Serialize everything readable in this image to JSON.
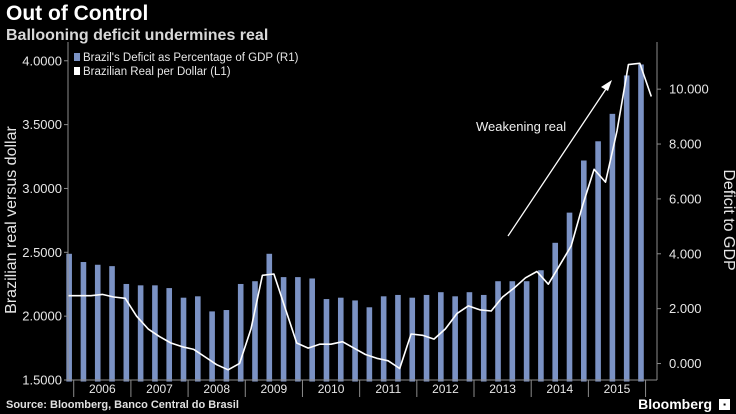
{
  "header": {
    "title": "Out of Control",
    "subtitle": "Ballooning deficit undermines real"
  },
  "footer": {
    "source": "Source: Bloomberg, Banco Central do Brasil",
    "brand": "Bloomberg"
  },
  "colors": {
    "background": "#000000",
    "bar": "#7b92c4",
    "line": "#ffffff",
    "axis": "#8c8c8c",
    "text": "#e6e6e6"
  },
  "chart_data": {
    "type": "bar+line",
    "categories": [
      "2006",
      "2007",
      "2008",
      "2009",
      "2010",
      "2011",
      "2012",
      "2013",
      "2014",
      "2015"
    ],
    "y_left": {
      "label": "Brazilian real versus dollar",
      "range": [
        1.5,
        4.1
      ],
      "ticks": [
        "1.5000",
        "2.0000",
        "2.5000",
        "3.0000",
        "3.5000",
        "4.0000"
      ],
      "tick_values": [
        1.5,
        2.0,
        2.5,
        3.0,
        3.5,
        4.0
      ]
    },
    "y_right": {
      "label": "Deficit to GDP",
      "range": [
        -0.6,
        11.5
      ],
      "ticks": [
        "0.000",
        "2.000",
        "4.000",
        "6.000",
        "8.000",
        "10.000"
      ],
      "tick_values": [
        0,
        2,
        4,
        6,
        8,
        10
      ]
    },
    "legend": [
      {
        "name": "Brazil's Deficit as Percentage of GDP (R1)",
        "swatch": "bar"
      },
      {
        "name": "Brazilian Real per Dollar (L1)",
        "swatch": "line"
      }
    ],
    "annotation": "Weakening real",
    "x_start": 2005.9,
    "x_end": 2016.2,
    "series": [
      {
        "name": "Brazil's Deficit as Percentage of GDP (R1)",
        "axis": "right",
        "type": "bar",
        "x": [
          2005.92,
          2006.17,
          2006.42,
          2006.67,
          2006.92,
          2007.17,
          2007.42,
          2007.67,
          2007.92,
          2008.17,
          2008.42,
          2008.67,
          2008.92,
          2009.17,
          2009.42,
          2009.67,
          2009.92,
          2010.17,
          2010.42,
          2010.67,
          2010.92,
          2011.17,
          2011.42,
          2011.67,
          2011.92,
          2012.17,
          2012.42,
          2012.67,
          2012.92,
          2013.17,
          2013.42,
          2013.67,
          2013.92,
          2014.17,
          2014.42,
          2014.67,
          2014.92,
          2015.17,
          2015.42,
          2015.67,
          2015.92
        ],
        "values": [
          4.0,
          3.7,
          3.6,
          3.55,
          2.9,
          2.85,
          2.85,
          2.75,
          2.4,
          2.45,
          1.9,
          1.95,
          2.9,
          3.0,
          4.0,
          3.15,
          3.15,
          3.1,
          2.35,
          2.4,
          2.3,
          2.05,
          2.45,
          2.5,
          2.4,
          2.5,
          2.6,
          2.45,
          2.6,
          2.5,
          3.0,
          3.0,
          3.0,
          3.4,
          4.4,
          5.5,
          7.4,
          8.1,
          9.1,
          10.5,
          10.9
        ]
      },
      {
        "name": "Brazilian Real per Dollar (L1)",
        "axis": "left",
        "type": "line",
        "x": [
          2005.9,
          2006.1,
          2006.3,
          2006.5,
          2006.7,
          2006.9,
          2007.1,
          2007.3,
          2007.5,
          2007.7,
          2007.9,
          2008.1,
          2008.3,
          2008.5,
          2008.7,
          2008.9,
          2009.1,
          2009.3,
          2009.5,
          2009.7,
          2009.9,
          2010.1,
          2010.3,
          2010.5,
          2010.7,
          2010.9,
          2011.1,
          2011.3,
          2011.5,
          2011.7,
          2011.9,
          2012.1,
          2012.3,
          2012.5,
          2012.7,
          2012.9,
          2013.1,
          2013.3,
          2013.5,
          2013.7,
          2013.9,
          2014.1,
          2014.3,
          2014.5,
          2014.7,
          2014.9,
          2015.1,
          2015.3,
          2015.5,
          2015.7,
          2015.9,
          2016.1
        ],
        "values": [
          2.16,
          2.16,
          2.16,
          2.17,
          2.15,
          2.14,
          2.0,
          1.9,
          1.84,
          1.79,
          1.76,
          1.74,
          1.68,
          1.62,
          1.58,
          1.63,
          1.9,
          2.32,
          2.33,
          2.06,
          1.79,
          1.75,
          1.78,
          1.78,
          1.8,
          1.75,
          1.7,
          1.67,
          1.65,
          1.59,
          1.86,
          1.85,
          1.82,
          1.9,
          2.02,
          2.08,
          2.05,
          2.04,
          2.15,
          2.22,
          2.3,
          2.35,
          2.25,
          2.4,
          2.55,
          2.87,
          3.15,
          3.05,
          3.45,
          3.97,
          3.98,
          3.72
        ]
      }
    ]
  }
}
